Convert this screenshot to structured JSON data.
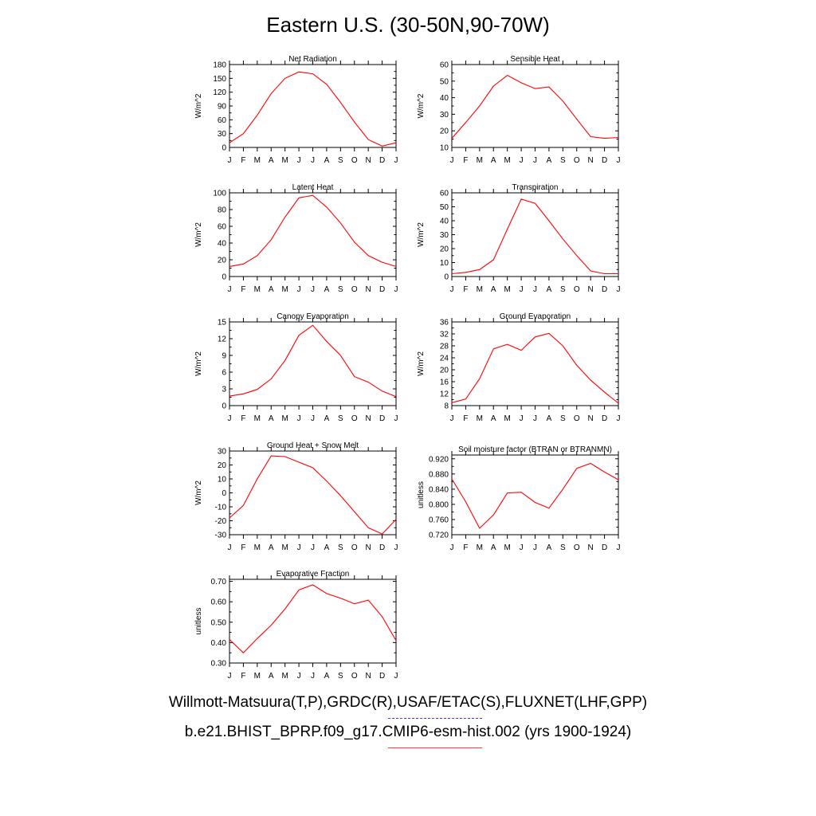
{
  "page": {
    "title": "Eastern U.S. (30-50N,90-70W)",
    "legend_obs": "Willmott-Matsuura(T,P),GRDC(R),USAF/ETAC(S),FLUXNET(LHF,GPP)",
    "legend_model": "b.e21.BHIST_BPRP.f09_g17.CMIP6-esm-hist.002 (yrs 1900-1924)",
    "obs_color": "#3b3bff",
    "model_color": "#ff0000"
  },
  "chart_data": [
    {
      "type": "line",
      "title": "Net Radiation",
      "ylabel": "W/m^2",
      "categories": [
        "J",
        "F",
        "M",
        "A",
        "M",
        "J",
        "J",
        "A",
        "S",
        "O",
        "N",
        "D",
        "J"
      ],
      "yticks": [
        "0",
        "30",
        "60",
        "90",
        "120",
        "150",
        "180"
      ],
      "ylim": [
        0,
        180
      ],
      "series": [
        {
          "values": [
            10,
            30,
            70,
            117,
            150,
            164,
            160,
            137,
            98,
            55,
            17,
            3,
            10
          ]
        }
      ]
    },
    {
      "type": "line",
      "title": "Sensible Heat",
      "ylabel": "W/m^2",
      "categories": [
        "J",
        "F",
        "M",
        "A",
        "M",
        "J",
        "J",
        "A",
        "S",
        "O",
        "N",
        "D",
        "J"
      ],
      "yticks": [
        "10",
        "20",
        "30",
        "40",
        "50",
        "60"
      ],
      "ylim": [
        10,
        60
      ],
      "series": [
        {
          "values": [
            15.5,
            25,
            35,
            47,
            53.5,
            49,
            45.5,
            46.5,
            38,
            27,
            16.5,
            15.5,
            16
          ]
        }
      ]
    },
    {
      "type": "line",
      "title": "Latent Heat",
      "ylabel": "W/m^2",
      "categories": [
        "J",
        "F",
        "M",
        "A",
        "M",
        "J",
        "J",
        "A",
        "S",
        "O",
        "N",
        "D",
        "J"
      ],
      "yticks": [
        "0",
        "20",
        "40",
        "60",
        "80",
        "100"
      ],
      "ylim": [
        0,
        100
      ],
      "series": [
        {
          "values": [
            12,
            15,
            25,
            44,
            71,
            94,
            97,
            83,
            64,
            41,
            25,
            17,
            12
          ]
        }
      ]
    },
    {
      "type": "line",
      "title": "Transpiration",
      "ylabel": "W/m^2",
      "categories": [
        "J",
        "F",
        "M",
        "A",
        "M",
        "J",
        "J",
        "A",
        "S",
        "O",
        "N",
        "D",
        "J"
      ],
      "yticks": [
        "0",
        "10",
        "20",
        "30",
        "40",
        "50",
        "60"
      ],
      "ylim": [
        0,
        60
      ],
      "series": [
        {
          "values": [
            2,
            3,
            5,
            12,
            34,
            55.5,
            52.5,
            40,
            27,
            15,
            4,
            2,
            2
          ]
        }
      ]
    },
    {
      "type": "line",
      "title": "Canopy Evaporation",
      "ylabel": "W/m^2",
      "categories": [
        "J",
        "F",
        "M",
        "A",
        "M",
        "J",
        "J",
        "A",
        "S",
        "O",
        "N",
        "D",
        "J"
      ],
      "yticks": [
        "0",
        "3",
        "6",
        "9",
        "12",
        "15"
      ],
      "ylim": [
        0,
        15
      ],
      "series": [
        {
          "values": [
            1.7,
            2.1,
            2.9,
            4.8,
            8.1,
            12.6,
            14.4,
            11.5,
            9,
            5.2,
            4.2,
            2.6,
            1.6
          ]
        }
      ]
    },
    {
      "type": "line",
      "title": "Ground Evaporation",
      "ylabel": "W/m^2",
      "categories": [
        "J",
        "F",
        "M",
        "A",
        "M",
        "J",
        "J",
        "A",
        "S",
        "O",
        "N",
        "D",
        "J"
      ],
      "yticks": [
        "8",
        "12",
        "16",
        "20",
        "24",
        "28",
        "32",
        "36"
      ],
      "ylim": [
        8,
        36
      ],
      "series": [
        {
          "values": [
            9,
            10.2,
            17,
            27,
            28.5,
            26.5,
            31,
            32.2,
            28,
            21.5,
            16.5,
            12.5,
            8.8
          ]
        }
      ]
    },
    {
      "type": "line",
      "title": "Ground Heat + Snow Melt",
      "ylabel": "W/m^2",
      "categories": [
        "J",
        "F",
        "M",
        "A",
        "M",
        "J",
        "J",
        "A",
        "S",
        "O",
        "N",
        "D",
        "J"
      ],
      "yticks": [
        "-30",
        "-20",
        "-10",
        "0",
        "10",
        "20",
        "30"
      ],
      "ylim": [
        -30,
        30
      ],
      "series": [
        {
          "values": [
            -18,
            -9,
            10,
            26.5,
            26,
            22,
            18,
            8.5,
            -2,
            -13.5,
            -25,
            -29.5,
            -19
          ]
        }
      ]
    },
    {
      "type": "line",
      "title": "Soil moisture factor (BTRAN or BTRANMN)",
      "ylabel": "unitless",
      "categories": [
        "J",
        "F",
        "M",
        "A",
        "M",
        "J",
        "J",
        "A",
        "S",
        "O",
        "N",
        "D",
        "J"
      ],
      "yticks": [
        "0.720",
        "0.760",
        "0.800",
        "0.840",
        "0.880",
        "0.920"
      ],
      "ylim": [
        0.72,
        0.93
      ],
      "series": [
        {
          "values": [
            0.867,
            0.807,
            0.737,
            0.772,
            0.83,
            0.832,
            0.805,
            0.79,
            0.84,
            0.895,
            0.908,
            0.885,
            0.865
          ]
        }
      ]
    },
    {
      "type": "line",
      "title": "Evaporative Fraction",
      "ylabel": "unitless",
      "categories": [
        "J",
        "F",
        "M",
        "A",
        "M",
        "J",
        "J",
        "A",
        "S",
        "O",
        "N",
        "D",
        "J"
      ],
      "yticks": [
        "0.30",
        "0.40",
        "0.50",
        "0.60",
        "0.70"
      ],
      "ylim": [
        0.3,
        0.71
      ],
      "series": [
        {
          "values": [
            0.415,
            0.35,
            0.42,
            0.485,
            0.565,
            0.658,
            0.683,
            0.64,
            0.618,
            0.59,
            0.608,
            0.527,
            0.41
          ]
        }
      ]
    }
  ]
}
